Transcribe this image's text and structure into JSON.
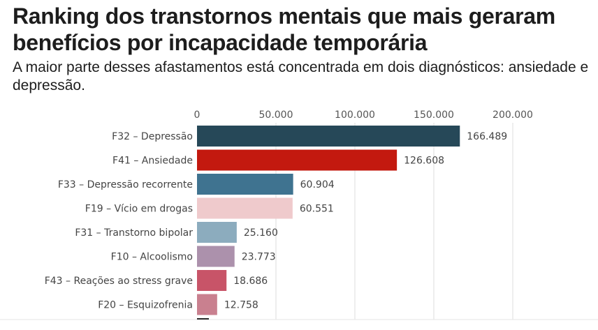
{
  "header": {
    "title": "Ranking dos transtornos mentais que mais geraram benefícios por incapacidade temporária",
    "subtitle": "A maior parte desses afastamentos está concentrada em dois diagnósticos: ansiedade e depressão."
  },
  "chart_data": {
    "type": "bar",
    "orientation": "horizontal",
    "title": "Ranking dos transtornos mentais que mais geraram benefícios por incapacidade temporária",
    "subtitle": "A maior parte desses afastamentos está concentrada em dois diagnósticos: ansiedade e depressão.",
    "xlabel": "",
    "ylabel": "",
    "xlim": [
      0,
      200000
    ],
    "x_ticks": [
      0,
      50000,
      100000,
      150000,
      200000
    ],
    "x_tick_labels": [
      "0",
      "50.000",
      "100.000",
      "150.000",
      "200.000"
    ],
    "x_axis_position": "top",
    "grid": true,
    "categories": [
      "F32 – Depressão",
      "F41 – Ansiedade",
      "F33 – Depressão recorrente",
      "F19 – Vício em drogas",
      "F31 – Transtorno bipolar",
      "F10 – Alcoolismo",
      "F43 – Reações ao stress grave",
      "F20 – Esquizofrenia"
    ],
    "values": [
      166489,
      126608,
      60904,
      60551,
      25160,
      23773,
      18686,
      12758
    ],
    "value_labels": [
      "166.489",
      "126.608",
      "60.904",
      "60.551",
      "25.160",
      "23.773",
      "18.686",
      "12.758"
    ],
    "colors": [
      "#264858",
      "#c3190f",
      "#3f7390",
      "#efcacc",
      "#8cacbe",
      "#ac91ac",
      "#c85468",
      "#c9808f"
    ],
    "truncated_next_bar_color": "#2b2b2b"
  }
}
